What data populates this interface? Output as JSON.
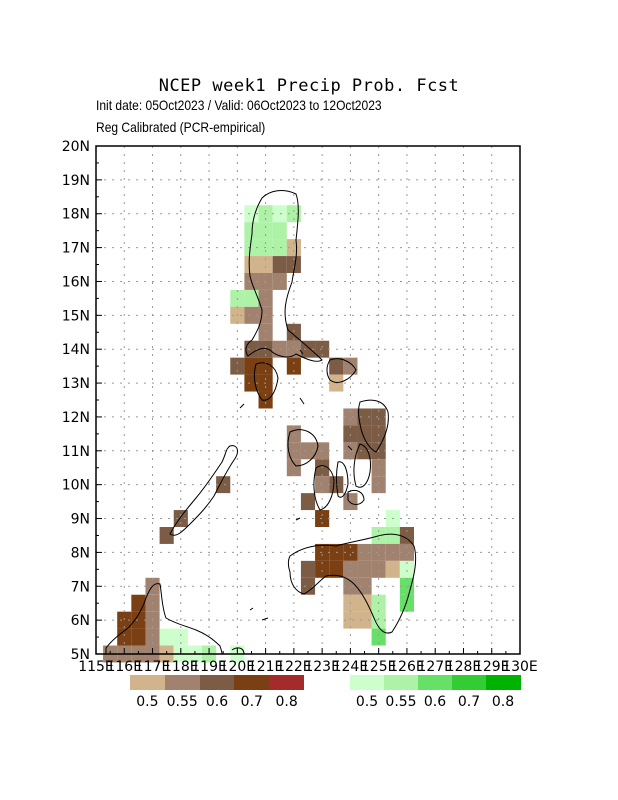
{
  "title": "NCEP week1 Precip Prob. Fcst",
  "subtitle_dates": "Init date: 05Oct2023 / Valid: 06Oct2023 to 12Oct2023",
  "subtitle_method": "Reg Calibrated (PCR-empirical)",
  "map": {
    "lon_range": [
      115,
      130
    ],
    "lat_range": [
      5,
      20
    ],
    "x_tick_labels": [
      "115E",
      "116E",
      "117E",
      "118E",
      "119E",
      "120E",
      "121E",
      "122E",
      "123E",
      "124E",
      "125E",
      "126E",
      "127E",
      "128E",
      "129E",
      "130E"
    ],
    "y_tick_labels": [
      "5N",
      "6N",
      "7N",
      "8N",
      "9N",
      "10N",
      "11N",
      "12N",
      "13N",
      "14N",
      "15N",
      "16N",
      "17N",
      "18N",
      "19N",
      "20N"
    ],
    "gridlines": true,
    "grid_resolution_deg": 0.5
  },
  "legend_dry": {
    "labels": [
      "0.5",
      "0.55",
      "0.6",
      "0.7",
      "0.8"
    ],
    "colors": [
      "#d2b48c",
      "#a0826e",
      "#7d5c46",
      "#7a3f12",
      "#a52a2a"
    ]
  },
  "legend_wet": {
    "labels": [
      "0.5",
      "0.55",
      "0.6",
      "0.7",
      "0.8"
    ],
    "colors": [
      "#ccffcc",
      "#aef2a8",
      "#66e066",
      "#33cc33",
      "#00b300"
    ]
  },
  "cells": [
    {
      "lon": 120.5,
      "lat": 18.0,
      "c": "w1"
    },
    {
      "lon": 121.0,
      "lat": 18.0,
      "c": "w2"
    },
    {
      "lon": 121.5,
      "lat": 18.0,
      "c": "w1"
    },
    {
      "lon": 122.0,
      "lat": 18.0,
      "c": "w2"
    },
    {
      "lon": 120.5,
      "lat": 17.5,
      "c": "w2"
    },
    {
      "lon": 121.0,
      "lat": 17.5,
      "c": "w2"
    },
    {
      "lon": 121.5,
      "lat": 17.5,
      "c": "w2"
    },
    {
      "lon": 120.5,
      "lat": 17.0,
      "c": "w2"
    },
    {
      "lon": 121.0,
      "lat": 17.0,
      "c": "w2"
    },
    {
      "lon": 121.5,
      "lat": 17.0,
      "c": "w2"
    },
    {
      "lon": 122.0,
      "lat": 17.0,
      "c": "d1"
    },
    {
      "lon": 120.5,
      "lat": 16.5,
      "c": "d1"
    },
    {
      "lon": 121.0,
      "lat": 16.5,
      "c": "d1"
    },
    {
      "lon": 121.5,
      "lat": 16.5,
      "c": "d3"
    },
    {
      "lon": 122.0,
      "lat": 16.5,
      "c": "d3"
    },
    {
      "lon": 120.5,
      "lat": 16.0,
      "c": "d2"
    },
    {
      "lon": 121.0,
      "lat": 16.0,
      "c": "d2"
    },
    {
      "lon": 121.5,
      "lat": 16.0,
      "c": "d2"
    },
    {
      "lon": 120.0,
      "lat": 15.5,
      "c": "w2"
    },
    {
      "lon": 120.5,
      "lat": 15.5,
      "c": "w2"
    },
    {
      "lon": 121.0,
      "lat": 15.5,
      "c": "d2"
    },
    {
      "lon": 120.0,
      "lat": 15.0,
      "c": "d1"
    },
    {
      "lon": 120.5,
      "lat": 15.0,
      "c": "d2"
    },
    {
      "lon": 121.0,
      "lat": 15.0,
      "c": "d2"
    },
    {
      "lon": 121.0,
      "lat": 14.5,
      "c": "d2"
    },
    {
      "lon": 122.0,
      "lat": 14.5,
      "c": "d3"
    },
    {
      "lon": 120.5,
      "lat": 14.0,
      "c": "d3"
    },
    {
      "lon": 121.0,
      "lat": 14.0,
      "c": "d3"
    },
    {
      "lon": 121.5,
      "lat": 14.0,
      "c": "d2"
    },
    {
      "lon": 122.0,
      "lat": 14.0,
      "c": "d2"
    },
    {
      "lon": 122.5,
      "lat": 14.0,
      "c": "d3"
    },
    {
      "lon": 123.0,
      "lat": 14.0,
      "c": "d3"
    },
    {
      "lon": 120.0,
      "lat": 13.5,
      "c": "d3"
    },
    {
      "lon": 120.5,
      "lat": 13.5,
      "c": "d4"
    },
    {
      "lon": 121.0,
      "lat": 13.5,
      "c": "d4"
    },
    {
      "lon": 122.0,
      "lat": 13.5,
      "c": "d4"
    },
    {
      "lon": 123.5,
      "lat": 13.5,
      "c": "d3"
    },
    {
      "lon": 124.0,
      "lat": 13.5,
      "c": "d2"
    },
    {
      "lon": 120.5,
      "lat": 13.0,
      "c": "d4"
    },
    {
      "lon": 121.0,
      "lat": 13.0,
      "c": "d4"
    },
    {
      "lon": 123.5,
      "lat": 13.0,
      "c": "d1"
    },
    {
      "lon": 121.0,
      "lat": 12.5,
      "c": "d4"
    },
    {
      "lon": 124.0,
      "lat": 12.0,
      "c": "d2"
    },
    {
      "lon": 124.5,
      "lat": 12.0,
      "c": "d3"
    },
    {
      "lon": 125.0,
      "lat": 12.0,
      "c": "d3"
    },
    {
      "lon": 122.0,
      "lat": 11.5,
      "c": "d2"
    },
    {
      "lon": 124.0,
      "lat": 11.5,
      "c": "d3"
    },
    {
      "lon": 124.5,
      "lat": 11.5,
      "c": "d3"
    },
    {
      "lon": 125.0,
      "lat": 11.5,
      "c": "d3"
    },
    {
      "lon": 122.0,
      "lat": 11.0,
      "c": "d2"
    },
    {
      "lon": 122.5,
      "lat": 11.0,
      "c": "d2"
    },
    {
      "lon": 123.0,
      "lat": 11.0,
      "c": "d2"
    },
    {
      "lon": 124.0,
      "lat": 11.0,
      "c": "d2"
    },
    {
      "lon": 124.5,
      "lat": 11.0,
      "c": "d3"
    },
    {
      "lon": 125.0,
      "lat": 11.0,
      "c": "d3"
    },
    {
      "lon": 122.0,
      "lat": 10.5,
      "c": "d2"
    },
    {
      "lon": 123.0,
      "lat": 10.5,
      "c": "d3"
    },
    {
      "lon": 125.0,
      "lat": 10.5,
      "c": "d2"
    },
    {
      "lon": 119.5,
      "lat": 10.0,
      "c": "d3"
    },
    {
      "lon": 123.0,
      "lat": 10.0,
      "c": "d2"
    },
    {
      "lon": 123.5,
      "lat": 10.0,
      "c": "d3"
    },
    {
      "lon": 125.0,
      "lat": 10.0,
      "c": "d2"
    },
    {
      "lon": 122.5,
      "lat": 9.5,
      "c": "d3"
    },
    {
      "lon": 124.0,
      "lat": 9.5,
      "c": "d2"
    },
    {
      "lon": 118.0,
      "lat": 9.0,
      "c": "d3"
    },
    {
      "lon": 123.0,
      "lat": 9.0,
      "c": "d4"
    },
    {
      "lon": 125.5,
      "lat": 9.0,
      "c": "w1"
    },
    {
      "lon": 117.5,
      "lat": 8.5,
      "c": "d3"
    },
    {
      "lon": 125.0,
      "lat": 8.5,
      "c": "w2"
    },
    {
      "lon": 125.5,
      "lat": 8.5,
      "c": "w2"
    },
    {
      "lon": 126.0,
      "lat": 8.5,
      "c": "d3"
    },
    {
      "lon": 123.0,
      "lat": 8.0,
      "c": "d4"
    },
    {
      "lon": 123.5,
      "lat": 8.0,
      "c": "d4"
    },
    {
      "lon": 124.0,
      "lat": 8.0,
      "c": "d4"
    },
    {
      "lon": 124.5,
      "lat": 8.0,
      "c": "d2"
    },
    {
      "lon": 125.0,
      "lat": 8.0,
      "c": "d2"
    },
    {
      "lon": 125.5,
      "lat": 8.0,
      "c": "d2"
    },
    {
      "lon": 126.0,
      "lat": 8.0,
      "c": "d2"
    },
    {
      "lon": 122.5,
      "lat": 7.5,
      "c": "d3"
    },
    {
      "lon": 123.0,
      "lat": 7.5,
      "c": "d4"
    },
    {
      "lon": 123.5,
      "lat": 7.5,
      "c": "d4"
    },
    {
      "lon": 124.0,
      "lat": 7.5,
      "c": "d2"
    },
    {
      "lon": 124.5,
      "lat": 7.5,
      "c": "d2"
    },
    {
      "lon": 125.0,
      "lat": 7.5,
      "c": "d2"
    },
    {
      "lon": 125.5,
      "lat": 7.5,
      "c": "d1"
    },
    {
      "lon": 126.0,
      "lat": 7.5,
      "c": "w1"
    },
    {
      "lon": 117.0,
      "lat": 7.0,
      "c": "d2"
    },
    {
      "lon": 122.5,
      "lat": 7.0,
      "c": "d3"
    },
    {
      "lon": 124.0,
      "lat": 7.0,
      "c": "d2"
    },
    {
      "lon": 124.5,
      "lat": 7.0,
      "c": "d2"
    },
    {
      "lon": 126.0,
      "lat": 7.0,
      "c": "w3"
    },
    {
      "lon": 116.5,
      "lat": 6.5,
      "c": "d4"
    },
    {
      "lon": 117.0,
      "lat": 6.5,
      "c": "d2"
    },
    {
      "lon": 124.0,
      "lat": 6.5,
      "c": "d1"
    },
    {
      "lon": 124.5,
      "lat": 6.5,
      "c": "d1"
    },
    {
      "lon": 125.0,
      "lat": 6.5,
      "c": "w2"
    },
    {
      "lon": 126.0,
      "lat": 6.5,
      "c": "w3"
    },
    {
      "lon": 116.0,
      "lat": 6.0,
      "c": "d4"
    },
    {
      "lon": 116.5,
      "lat": 6.0,
      "c": "d4"
    },
    {
      "lon": 117.0,
      "lat": 6.0,
      "c": "d2"
    },
    {
      "lon": 124.0,
      "lat": 6.0,
      "c": "d1"
    },
    {
      "lon": 124.5,
      "lat": 6.0,
      "c": "d1"
    },
    {
      "lon": 125.0,
      "lat": 6.0,
      "c": "w2"
    },
    {
      "lon": 116.0,
      "lat": 5.5,
      "c": "d4"
    },
    {
      "lon": 116.5,
      "lat": 5.5,
      "c": "d4"
    },
    {
      "lon": 117.0,
      "lat": 5.5,
      "c": "d2"
    },
    {
      "lon": 117.5,
      "lat": 5.5,
      "c": "w1"
    },
    {
      "lon": 118.0,
      "lat": 5.5,
      "c": "w1"
    },
    {
      "lon": 125.0,
      "lat": 5.5,
      "c": "w3"
    },
    {
      "lon": 115.5,
      "lat": 5.0,
      "c": "d2"
    },
    {
      "lon": 116.0,
      "lat": 5.0,
      "c": "d2"
    },
    {
      "lon": 116.5,
      "lat": 5.0,
      "c": "d2"
    },
    {
      "lon": 117.0,
      "lat": 5.0,
      "c": "d2"
    },
    {
      "lon": 117.5,
      "lat": 5.0,
      "c": "d1"
    },
    {
      "lon": 118.0,
      "lat": 5.0,
      "c": "w1"
    },
    {
      "lon": 118.5,
      "lat": 5.0,
      "c": "w1"
    },
    {
      "lon": 119.0,
      "lat": 5.0,
      "c": "w2"
    },
    {
      "lon": 120.0,
      "lat": 5.0,
      "c": "w1"
    }
  ]
}
